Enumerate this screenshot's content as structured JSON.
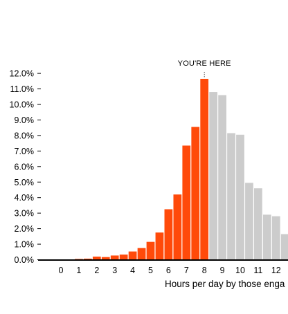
{
  "chart_data": {
    "type": "bar",
    "title": "",
    "xlabel": "Hours per day by those enga",
    "ylabel": "",
    "y_tick_labels": [
      "0.0%",
      "1.0%",
      "2.0%",
      "3.0%",
      "4.0%",
      "5.0%",
      "6.0%",
      "7.0%",
      "8.0%",
      "9.0%",
      "10.0%",
      "11.0%",
      "12.0%"
    ],
    "x_tick_labels": [
      "0",
      "1",
      "2",
      "3",
      "4",
      "5",
      "6",
      "7",
      "8",
      "9",
      "10",
      "11",
      "12"
    ],
    "ylim": [
      0,
      12
    ],
    "bin_width_hours": 0.5,
    "bins": [
      {
        "x": 0.0,
        "value": 0.02
      },
      {
        "x": 0.5,
        "value": 0.02
      },
      {
        "x": 1.0,
        "value": 0.05
      },
      {
        "x": 1.5,
        "value": 0.07
      },
      {
        "x": 2.0,
        "value": 0.2
      },
      {
        "x": 2.5,
        "value": 0.17
      },
      {
        "x": 3.0,
        "value": 0.27
      },
      {
        "x": 3.5,
        "value": 0.33
      },
      {
        "x": 4.0,
        "value": 0.53
      },
      {
        "x": 4.5,
        "value": 0.75
      },
      {
        "x": 5.0,
        "value": 1.15
      },
      {
        "x": 5.5,
        "value": 1.75
      },
      {
        "x": 6.0,
        "value": 3.25
      },
      {
        "x": 6.5,
        "value": 4.2
      },
      {
        "x": 7.0,
        "value": 7.35
      },
      {
        "x": 7.5,
        "value": 8.55
      },
      {
        "x": 8.0,
        "value": 11.65
      },
      {
        "x": 8.5,
        "value": 10.8
      },
      {
        "x": 9.0,
        "value": 10.6
      },
      {
        "x": 9.5,
        "value": 8.15
      },
      {
        "x": 10.0,
        "value": 8.05
      },
      {
        "x": 10.5,
        "value": 4.95
      },
      {
        "x": 11.0,
        "value": 4.6
      },
      {
        "x": 11.5,
        "value": 2.9
      },
      {
        "x": 12.0,
        "value": 2.8
      },
      {
        "x": 12.5,
        "value": 1.65
      }
    ],
    "highlight_through_x": 8.0,
    "annotation": {
      "text": "YOU'RE HERE",
      "x": 8.0
    },
    "colors": {
      "highlight": "#ff4a0a",
      "rest": "#cccccc",
      "axis": "#000000"
    }
  }
}
